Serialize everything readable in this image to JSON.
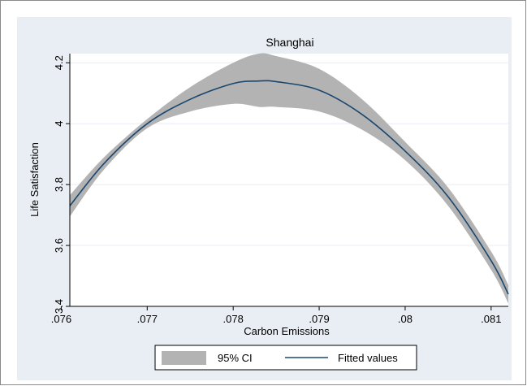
{
  "chart_data": {
    "type": "line",
    "title": "Shanghai",
    "xlabel": "Carbon Emissions",
    "ylabel": "Life Satisfaction",
    "xlim": [
      0.0761,
      0.0812
    ],
    "ylim": [
      3.4,
      4.23
    ],
    "xticks": [
      0.076,
      0.077,
      0.078,
      0.079,
      0.08,
      0.081
    ],
    "xtick_labels": [
      ".076",
      ".077",
      ".078",
      ".079",
      ".08",
      ".081"
    ],
    "yticks": [
      3.4,
      3.6,
      3.8,
      4,
      4.2
    ],
    "ytick_labels": [
      "3.4",
      "3.6",
      "3.8",
      "4",
      "4.2"
    ],
    "grid": true,
    "legend_position": "bottom",
    "colors": {
      "fit": "#1a476f",
      "ci": "#b3b3b3",
      "graph_background": "#e8eef4",
      "plot_background": "#ffffff"
    },
    "series": [
      {
        "name": "Fitted values",
        "kind": "line",
        "x": [
          0.0761,
          0.0765,
          0.077,
          0.0775,
          0.078,
          0.0783,
          0.0785,
          0.079,
          0.0795,
          0.08,
          0.0805,
          0.081,
          0.0812
        ],
        "y": [
          3.73,
          3.87,
          4.0,
          4.08,
          4.132,
          4.14,
          4.138,
          4.11,
          4.03,
          3.91,
          3.76,
          3.55,
          3.44
        ]
      },
      {
        "name": "95% CI",
        "kind": "band",
        "x": [
          0.0761,
          0.0765,
          0.077,
          0.0775,
          0.078,
          0.0783,
          0.0785,
          0.079,
          0.0795,
          0.08,
          0.0805,
          0.081,
          0.0812
        ],
        "upper": [
          3.765,
          3.89,
          4.015,
          4.12,
          4.2,
          4.23,
          4.222,
          4.18,
          4.08,
          3.94,
          3.79,
          3.58,
          3.47
        ],
        "lower": [
          3.695,
          3.85,
          3.985,
          4.04,
          4.065,
          4.055,
          4.055,
          4.04,
          3.98,
          3.88,
          3.73,
          3.52,
          3.41
        ]
      }
    ]
  }
}
